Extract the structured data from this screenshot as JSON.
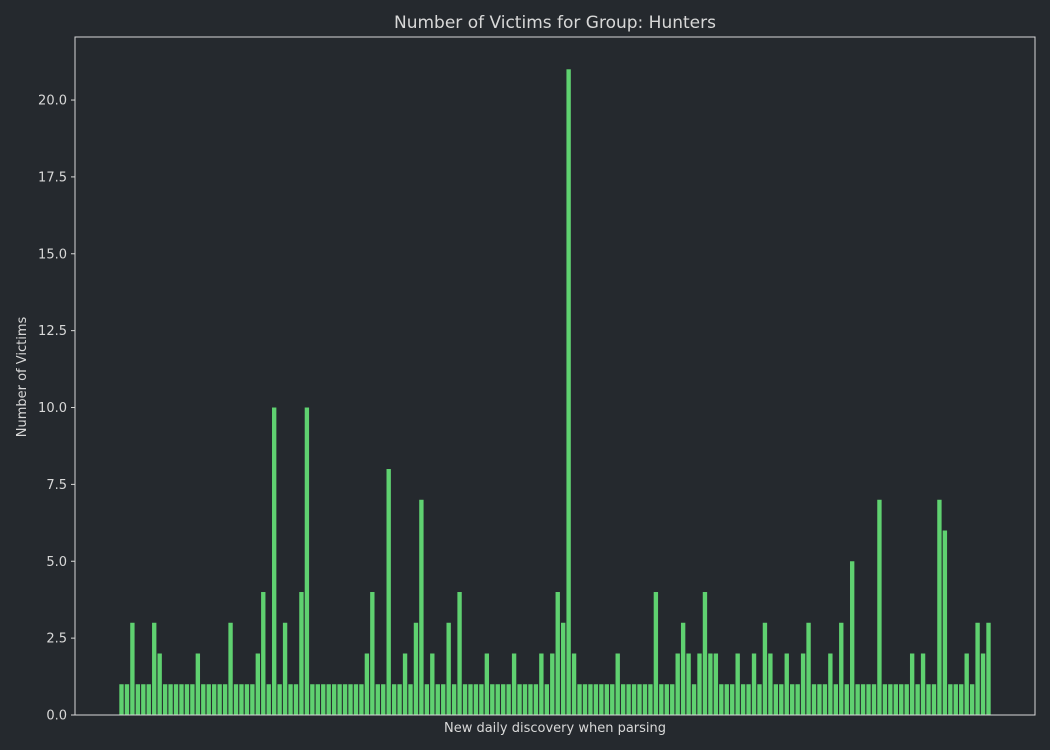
{
  "colors": {
    "background": "#25292e",
    "bar": "#5fd170",
    "axes": "#d8d8d8",
    "text": "#d8d8d8"
  },
  "chart_data": {
    "type": "bar",
    "title": "Number of Victims for Group: Hunters",
    "xlabel": "New daily discovery when parsing",
    "ylabel": "Number of Victims",
    "ylim": [
      0,
      22.05
    ],
    "yticks": [
      "0.0",
      "2.5",
      "5.0",
      "7.5",
      "10.0",
      "12.5",
      "15.0",
      "17.5",
      "20.0"
    ],
    "xtick_labels_visible": false,
    "grid": false,
    "legend": "none",
    "values": [
      1,
      1,
      3,
      1,
      1,
      1,
      3,
      2,
      1,
      1,
      1,
      1,
      1,
      1,
      2,
      1,
      1,
      1,
      1,
      1,
      3,
      1,
      1,
      1,
      1,
      2,
      4,
      1,
      10,
      1,
      3,
      1,
      1,
      4,
      10,
      1,
      1,
      1,
      1,
      1,
      1,
      1,
      1,
      1,
      1,
      2,
      4,
      1,
      1,
      8,
      1,
      1,
      2,
      1,
      3,
      7,
      1,
      2,
      1,
      1,
      3,
      1,
      4,
      1,
      1,
      1,
      1,
      2,
      1,
      1,
      1,
      1,
      2,
      1,
      1,
      1,
      1,
      2,
      1,
      2,
      4,
      3,
      21,
      2,
      1,
      1,
      1,
      1,
      1,
      1,
      1,
      2,
      1,
      1,
      1,
      1,
      1,
      1,
      4,
      1,
      1,
      1,
      2,
      3,
      2,
      1,
      2,
      4,
      2,
      2,
      1,
      1,
      1,
      2,
      1,
      1,
      2,
      1,
      3,
      2,
      1,
      1,
      2,
      1,
      1,
      2,
      3,
      1,
      1,
      1,
      2,
      1,
      3,
      1,
      5,
      1,
      1,
      1,
      1,
      7,
      1,
      1,
      1,
      1,
      1,
      2,
      1,
      2,
      1,
      1,
      7,
      6,
      1,
      1,
      1,
      2,
      1,
      3,
      2,
      3
    ]
  }
}
